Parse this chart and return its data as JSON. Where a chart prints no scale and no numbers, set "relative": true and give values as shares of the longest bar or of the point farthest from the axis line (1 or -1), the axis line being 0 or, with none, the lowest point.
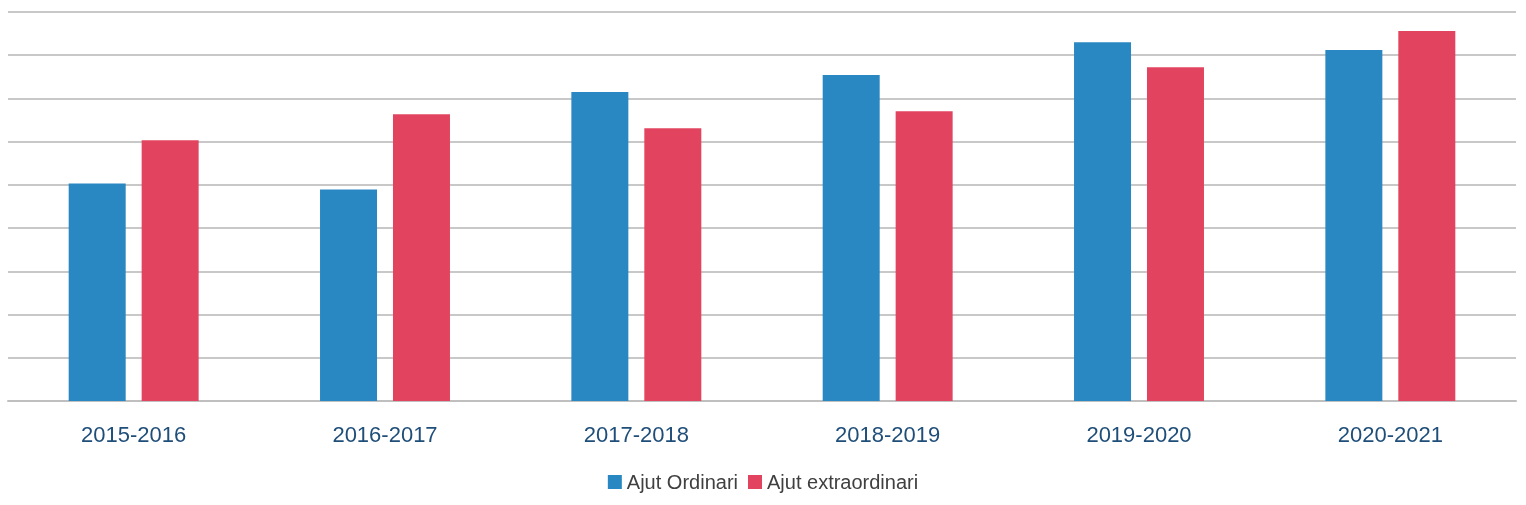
{
  "chart_data": {
    "type": "bar",
    "relative": true,
    "grid": "y",
    "legend": "bottom",
    "categories": [
      "2015-2016",
      "2016-2017",
      "2017-2018",
      "2018-2019",
      "2019-2020",
      "2020-2021"
    ],
    "series": [
      {
        "name": "Ajut Ordinari",
        "color": "#2988c1",
        "values": [
          0.588,
          0.572,
          0.835,
          0.881,
          0.97,
          0.949
        ]
      },
      {
        "name": "Ajut extraordinari",
        "color": "#e2445f",
        "values": [
          0.705,
          0.775,
          0.737,
          0.783,
          0.902,
          1
        ]
      }
    ]
  }
}
